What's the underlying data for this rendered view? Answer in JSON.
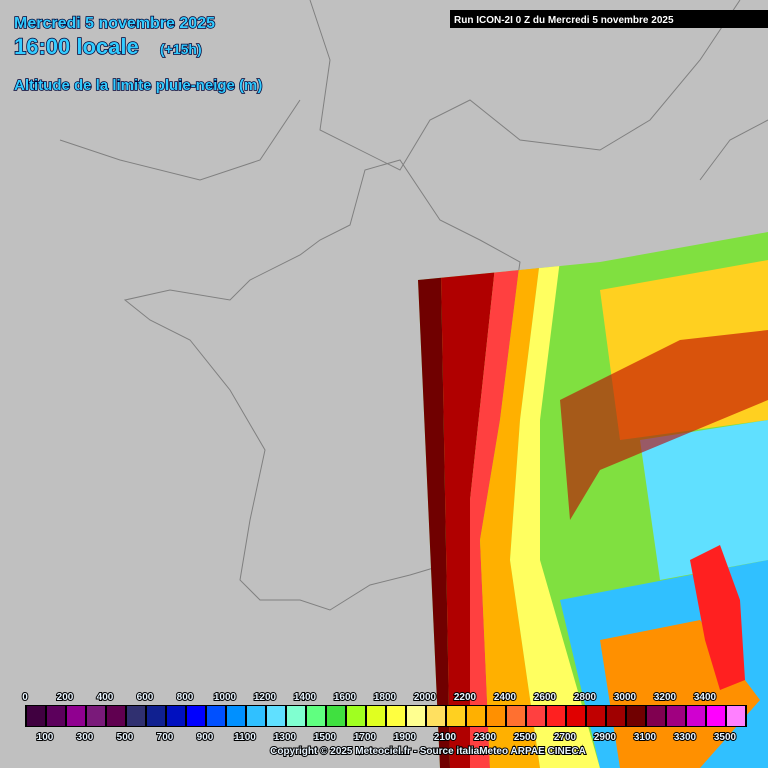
{
  "header": {
    "date": "Mercredi 5 novembre 2025",
    "time": "16:00 locale",
    "offset": "(+15h)",
    "parameter": "Altitude de la limite pluie-neige (m)",
    "run": "Run ICON-2I 0 Z du Mercredi 5 novembre 2025"
  },
  "legend": {
    "labels": [
      0,
      100,
      200,
      300,
      400,
      500,
      600,
      700,
      800,
      900,
      1000,
      1100,
      1200,
      1300,
      1400,
      1500,
      1600,
      1700,
      1800,
      1900,
      2000,
      2100,
      2200,
      2300,
      2400,
      2500,
      2600,
      2700,
      2800,
      2900,
      3000,
      3100,
      3200,
      3300,
      3400,
      3500
    ],
    "colors": [
      "#400040",
      "#5c005c",
      "#900090",
      "#7a1a7a",
      "#600050",
      "#303070",
      "#102090",
      "#0010c0",
      "#0000ff",
      "#0050ff",
      "#0090ff",
      "#30c0ff",
      "#60e0ff",
      "#80ffd0",
      "#60ff80",
      "#40e040",
      "#a0ff20",
      "#e0ff20",
      "#ffff40",
      "#ffff90",
      "#ffe060",
      "#ffd020",
      "#ffb000",
      "#ff9000",
      "#ff7030",
      "#ff4040",
      "#ff2020",
      "#e00000",
      "#c00000",
      "#a00000",
      "#700000",
      "#800050",
      "#a00080",
      "#d000d0",
      "#ff00ff",
      "#ff80ff"
    ]
  },
  "footer": {
    "copyright": "Copyright © 2025 Meteociel.fr - Source italiaMeteo ARPAE CINECA"
  }
}
